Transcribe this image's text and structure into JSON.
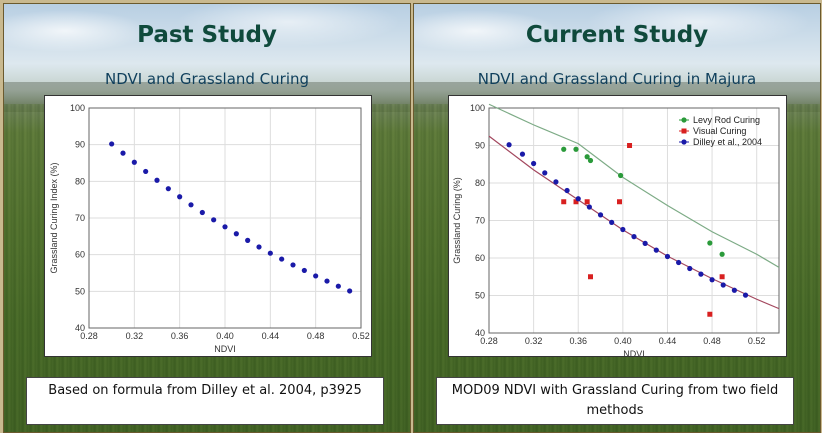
{
  "left_panel": {
    "heading": "Past Study",
    "subtitle": "NDVI and Grassland Curing",
    "caption": "Based on formula from Dilley et al. 2004, p3925"
  },
  "right_panel": {
    "heading": "Current Study",
    "subtitle": "NDVI and Grassland Curing in Majura",
    "caption": "MOD09 NDVI with Grassland Curing from two field methods"
  },
  "colors": {
    "heading": "#0f4a3c",
    "subtitle": "#0f3f5c",
    "blue_series": "#1a1aa8",
    "green_series": "#2a9a3a",
    "red_series": "#d82020",
    "green_curve": "#7dab86",
    "red_curve": "#a3475e"
  },
  "chart_data": [
    {
      "type": "scatter",
      "xlabel": "NDVI",
      "ylabel": "Grassland Curing Index (%)",
      "xlim": [
        0.28,
        0.52
      ],
      "ylim": [
        40,
        100
      ],
      "xticks": [
        "0.28",
        "0.32",
        "0.36",
        "0.40",
        "0.44",
        "0.48",
        "0.52"
      ],
      "yticks": [
        "40",
        "50",
        "60",
        "70",
        "80",
        "90",
        "100"
      ],
      "grid": true,
      "series": [
        {
          "color": "#1a1aa8",
          "x": [
            0.3,
            0.31,
            0.32,
            0.33,
            0.34,
            0.35,
            0.36,
            0.37,
            0.38,
            0.39,
            0.4,
            0.41,
            0.42,
            0.43,
            0.44,
            0.45,
            0.46,
            0.47,
            0.48,
            0.49,
            0.5,
            0.51
          ],
          "y": [
            90.2,
            87.7,
            85.2,
            82.7,
            80.3,
            78.0,
            75.8,
            73.6,
            71.5,
            69.5,
            67.6,
            65.7,
            63.9,
            62.1,
            60.4,
            58.8,
            57.2,
            55.7,
            54.2,
            52.8,
            51.4,
            50.1
          ]
        }
      ]
    },
    {
      "type": "scatter",
      "xlabel": "NDVI",
      "ylabel": "Grassland Curing (%)",
      "xlim": [
        0.28,
        0.54
      ],
      "ylim": [
        40,
        100
      ],
      "xticks": [
        "0.28",
        "0.32",
        "0.36",
        "0.40",
        "0.44",
        "0.48",
        "0.52"
      ],
      "yticks": [
        "40",
        "50",
        "60",
        "70",
        "80",
        "90",
        "100"
      ],
      "grid": true,
      "legend": "top-right",
      "series": [
        {
          "name": "Levy Rod Curing",
          "color": "#2a9a3a",
          "x": [
            0.347,
            0.358,
            0.368,
            0.371,
            0.398,
            0.478,
            0.489
          ],
          "y": [
            89,
            89,
            87,
            86,
            82,
            64,
            61
          ]
        },
        {
          "name": "Visual Curing",
          "color": "#d82020",
          "x": [
            0.347,
            0.358,
            0.368,
            0.371,
            0.397,
            0.406,
            0.478,
            0.489
          ],
          "y": [
            75,
            75,
            75,
            55,
            75,
            90,
            45,
            55
          ]
        },
        {
          "name": "Dilley et al., 2004",
          "color": "#1a1aa8",
          "x": [
            0.298,
            0.31,
            0.32,
            0.33,
            0.34,
            0.35,
            0.36,
            0.37,
            0.38,
            0.39,
            0.4,
            0.41,
            0.42,
            0.43,
            0.44,
            0.45,
            0.46,
            0.47,
            0.48,
            0.49,
            0.5,
            0.51
          ],
          "y": [
            90.2,
            87.7,
            85.2,
            82.7,
            80.3,
            78.0,
            75.8,
            73.6,
            71.5,
            69.5,
            67.6,
            65.7,
            63.9,
            62.1,
            60.4,
            58.8,
            57.2,
            55.7,
            54.2,
            52.8,
            51.4,
            50.1
          ]
        }
      ],
      "trend_lines": [
        {
          "color": "#7dab86",
          "x": [
            0.28,
            0.32,
            0.36,
            0.4,
            0.44,
            0.48,
            0.52,
            0.54
          ],
          "y": [
            101,
            95.5,
            90.5,
            81.5,
            74.0,
            67.0,
            61.0,
            57.5
          ]
        },
        {
          "color": "#a3475e",
          "x": [
            0.28,
            0.32,
            0.36,
            0.4,
            0.44,
            0.48,
            0.52,
            0.54
          ],
          "y": [
            92.5,
            83.5,
            75.5,
            67.5,
            60.5,
            54.5,
            49.0,
            46.5
          ]
        }
      ]
    }
  ]
}
